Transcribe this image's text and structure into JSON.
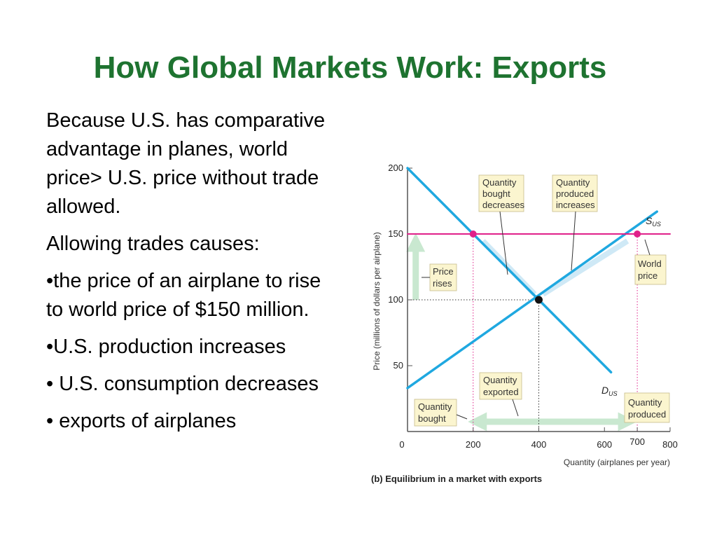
{
  "slide": {
    "title": "How Global Markets Work: Exports",
    "paragraphs": [
      "Because U.S. has comparative advantage in planes, world price> U.S. price without trade allowed.",
      "Allowing trades causes:",
      "•the price of an airplane to rise to world price of $150 million.",
      "•U.S. production increases",
      "• U.S. consumption decreases",
      "• exports of airplanes"
    ]
  },
  "colors": {
    "title": "#1e7330",
    "curves": "#1fa8e0",
    "world_price": "#e0218a",
    "arrows": "#c9e8d0",
    "label_box": "#fbf5cf"
  },
  "chart_data": {
    "type": "line",
    "xlabel": "Quantity (airplanes per year)",
    "ylabel": "Price (millions of dollars per airplane)",
    "caption": "(b) Equilibrium in a market with exports",
    "xlim": [
      0,
      800
    ],
    "ylim": [
      0,
      200
    ],
    "x_ticks": [
      0,
      200,
      400,
      600,
      700,
      800
    ],
    "y_ticks": [
      50,
      100,
      150,
      200
    ],
    "highlight_ticks": {
      "x": [
        200,
        700
      ],
      "y": [
        150
      ]
    },
    "series": [
      {
        "name": "D",
        "subscript": "US",
        "x": [
          0,
          620
        ],
        "y": [
          200,
          45
        ]
      },
      {
        "name": "S",
        "subscript": "US",
        "x": [
          0,
          760
        ],
        "y": [
          33,
          167
        ]
      },
      {
        "name": "World price",
        "x": [
          0,
          800
        ],
        "y": [
          150,
          150
        ]
      }
    ],
    "points": [
      {
        "x": 400,
        "y": 100,
        "role": "no-trade equilibrium"
      },
      {
        "x": 200,
        "y": 150,
        "role": "quantity bought"
      },
      {
        "x": 700,
        "y": 150,
        "role": "quantity produced"
      }
    ],
    "annotations": [
      "Quantity bought decreases",
      "Quantity produced increases",
      "World price",
      "Price rises",
      "Quantity exported",
      "Quantity bought",
      "Quantity produced"
    ]
  }
}
